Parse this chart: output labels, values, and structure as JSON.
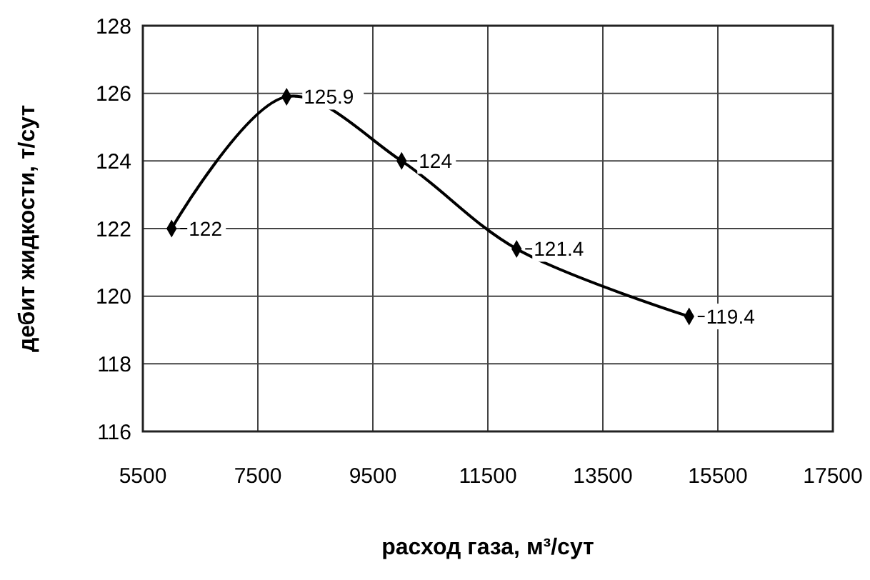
{
  "chart_data": {
    "type": "line",
    "xlabel": "расход газа,  м³/сут",
    "ylabel": "дебит жидкости, т/сут",
    "x": [
      6000,
      8000,
      10000,
      12000,
      15000
    ],
    "series": [
      {
        "color": "#000000",
        "values": [
          122,
          125.9,
          124,
          121.4,
          119.4
        ]
      }
    ],
    "xlim": [
      5500,
      17500
    ],
    "xticks": [
      5500,
      7500,
      9500,
      11500,
      13500,
      15500,
      17500
    ],
    "ylim": [
      116,
      128
    ],
    "yticks": [
      116,
      118,
      120,
      122,
      124,
      126,
      128
    ],
    "grid": true,
    "marker": "diamond",
    "line_style": "solid",
    "data_labels": true
  }
}
